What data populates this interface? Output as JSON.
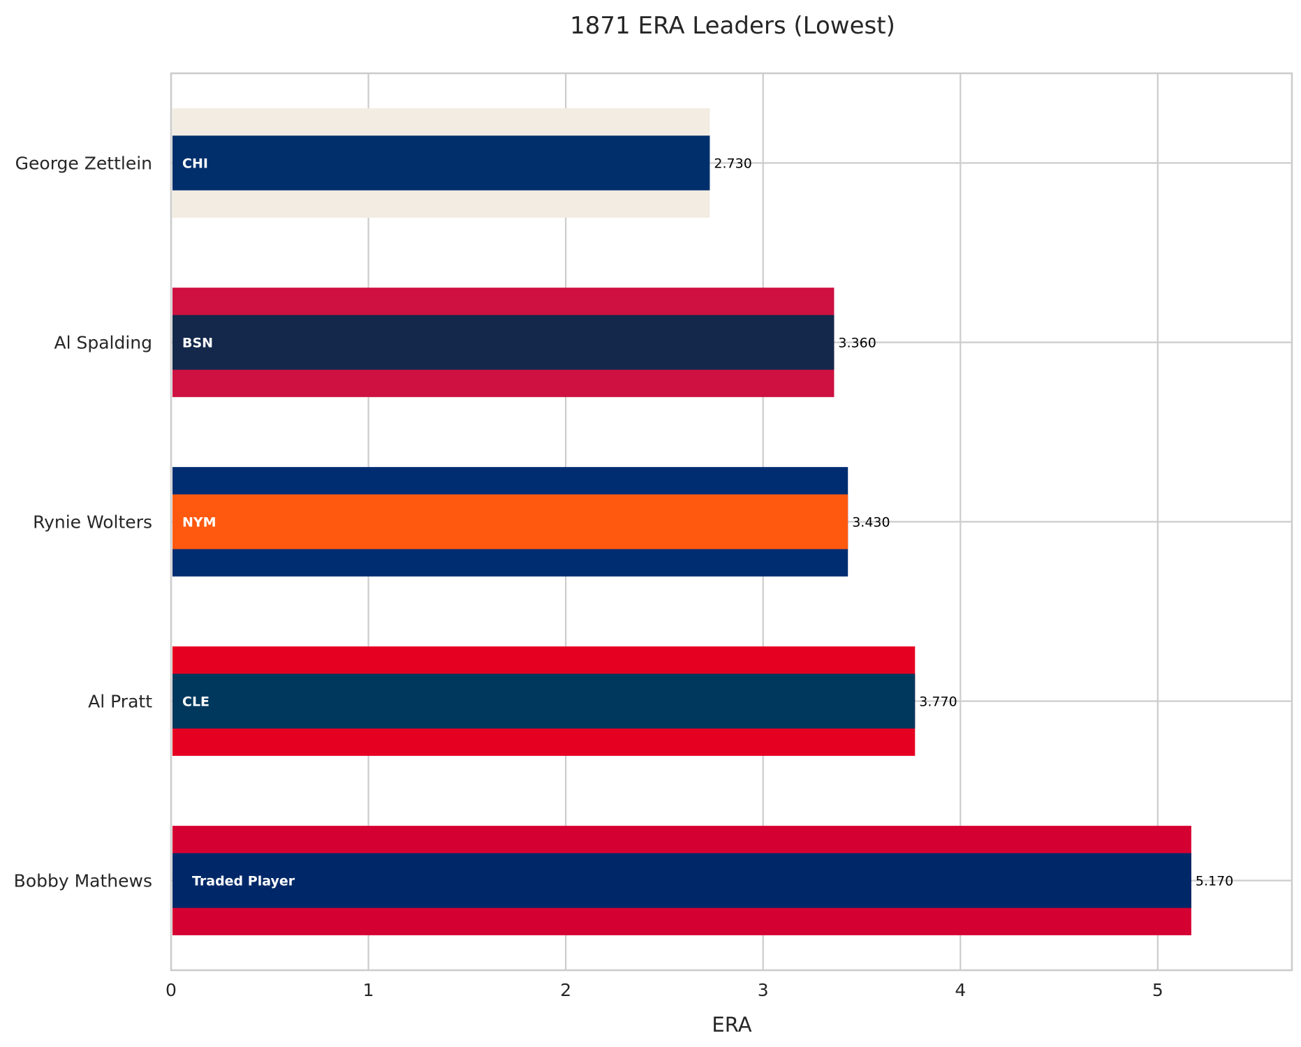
{
  "chart_data": {
    "type": "bar",
    "orientation": "horizontal",
    "title": "1871 ERA Leaders (Lowest)",
    "xlabel": "ERA",
    "ylabel": "",
    "xlim": [
      0,
      5.68
    ],
    "xticks": [
      "0",
      "1",
      "2",
      "3",
      "4",
      "5"
    ],
    "grid": true,
    "categories": [
      "George Zettlein",
      "Al Spalding",
      "Rynie Wolters",
      "Al Pratt",
      "Bobby Mathews"
    ],
    "values": [
      2.73,
      3.36,
      3.43,
      3.77,
      5.17
    ],
    "value_labels": [
      "2.730",
      "3.360",
      "3.430",
      "3.770",
      "5.170"
    ],
    "team_labels": [
      "CHI",
      "BSN",
      "NYM",
      "CLE",
      "Traded Player"
    ],
    "primary_colors": [
      "#0E3386",
      "#0C2340",
      "#002D72",
      "#00385D",
      "#0C2340"
    ],
    "inner_colors": [
      "#002F6C",
      "#14284B",
      "#FF5910",
      "#00385D",
      "#002868"
    ],
    "outer_colors": [
      "#F2ECE2",
      "#CE1141",
      "#002D72",
      "#E50022",
      "#D50032"
    ]
  }
}
